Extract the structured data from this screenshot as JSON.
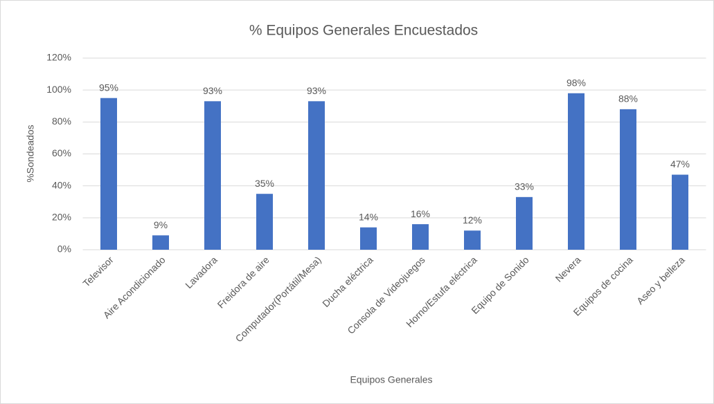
{
  "chart_data": {
    "type": "bar",
    "title": "% Equipos Generales  Encuestados",
    "x_label": "Equipos Generales",
    "y_label": "%Sondeados",
    "categories": [
      "Televisor",
      "Aire Acondicionado",
      "Lavadora",
      "Freidora de aire",
      "Computador(Portátil/Mesa)",
      "Ducha eléctrica",
      "Consola de Videojuegos",
      "Horno/Estufa eléctrica",
      "Equipo de Sonido",
      "Nevera",
      "Equipos de cocina",
      "Aseo y belleza"
    ],
    "values": [
      95,
      9,
      93,
      35,
      93,
      14,
      16,
      12,
      33,
      98,
      88,
      47
    ],
    "value_labels": [
      "95%",
      "9%",
      "93%",
      "35%",
      "93%",
      "14%",
      "16%",
      "12%",
      "33%",
      "98%",
      "88%",
      "47%"
    ],
    "color": "#4472c4",
    "ylim": [
      0,
      120
    ],
    "yticks": [
      {
        "value": 0,
        "label": "0%"
      },
      {
        "value": 20,
        "label": "20%"
      },
      {
        "value": 40,
        "label": "40%"
      },
      {
        "value": 60,
        "label": "60%"
      },
      {
        "value": 80,
        "label": "80%"
      },
      {
        "value": 100,
        "label": "100%"
      },
      {
        "value": 120,
        "label": "120%"
      }
    ],
    "grid": true
  }
}
